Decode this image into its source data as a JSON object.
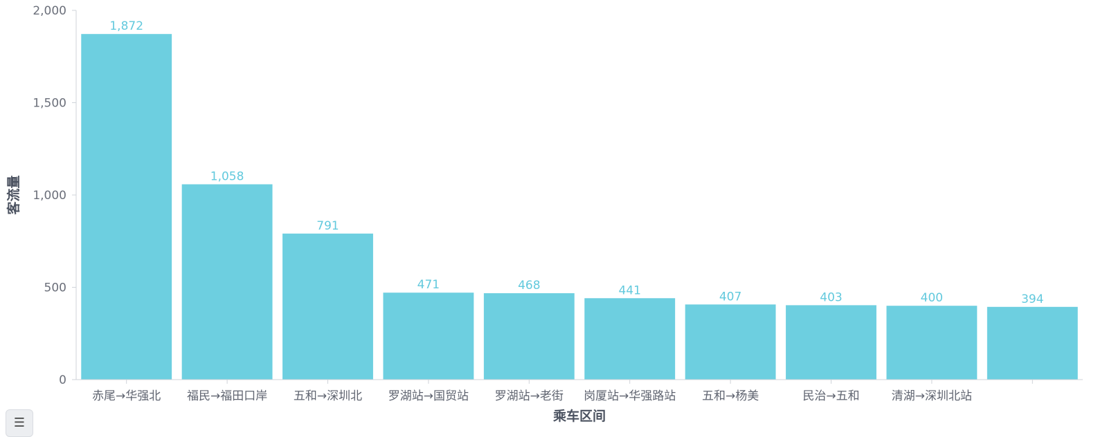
{
  "chart_data": {
    "type": "bar",
    "title": "",
    "xlabel": "乘车区间",
    "ylabel": "客流量",
    "ylim": [
      0,
      2000
    ],
    "yticks": [
      0,
      500,
      1000,
      1500,
      2000
    ],
    "ytick_labels": [
      "0",
      "500",
      "1,000",
      "1,500",
      "2,000"
    ],
    "grid": false,
    "bar_color": "#6dcfe0",
    "label_color": "#62c9dd",
    "categories": [
      "赤尾→华强北",
      "福民→福田口岸",
      "五和→深圳北",
      "罗湖站→国贸站",
      "罗湖站→老街",
      "岗厦站→华强路站",
      "五和→杨美",
      "民治→五和",
      "清湖→深圳北站",
      ""
    ],
    "values": [
      1872,
      1058,
      791,
      471,
      468,
      441,
      407,
      403,
      400,
      394
    ],
    "value_labels": [
      "1,872",
      "1,058",
      "791",
      "471",
      "468",
      "441",
      "407",
      "403",
      "400",
      "394"
    ]
  },
  "legend_toggle_icon": "list-icon"
}
